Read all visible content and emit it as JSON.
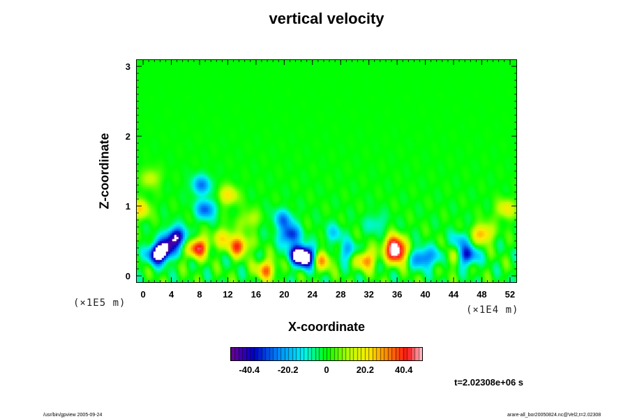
{
  "chart_data": {
    "type": "heatmap",
    "title": "vertical velocity",
    "xlabel": "X-coordinate",
    "ylabel": "Z-coordinate",
    "x_scale_note": "(×1E4 m)",
    "y_scale_note": "(×1E5 m)",
    "xlim": [
      -1,
      53
    ],
    "ylim": [
      -0.1,
      3.1
    ],
    "x_ticks": [
      0,
      4,
      8,
      12,
      16,
      20,
      24,
      28,
      32,
      36,
      40,
      44,
      48,
      52
    ],
    "y_ticks": [
      0,
      1,
      2,
      3
    ],
    "colorbar": {
      "ticks": [
        -40.4,
        -20.2,
        0,
        20.2,
        40.4
      ],
      "tick_labels": [
        "-40.4",
        "-20.2",
        "0",
        "20.2",
        "40.4"
      ],
      "range": [
        -50,
        50
      ]
    },
    "features": [
      {
        "x": 3.0,
        "z": 0.38,
        "value": -38
      },
      {
        "x": 4.6,
        "z": 0.55,
        "value": -48
      },
      {
        "x": 2.0,
        "z": 0.3,
        "value": -50
      },
      {
        "x": 8.8,
        "z": 0.95,
        "value": -30
      },
      {
        "x": 8.2,
        "z": 1.3,
        "value": -26
      },
      {
        "x": 8.0,
        "z": 0.42,
        "value": 30
      },
      {
        "x": 7.2,
        "z": 0.35,
        "value": 18
      },
      {
        "x": 13.5,
        "z": 0.42,
        "value": 38
      },
      {
        "x": 11.5,
        "z": 0.55,
        "value": 20
      },
      {
        "x": 17.4,
        "z": 0.08,
        "value": 32
      },
      {
        "x": 22.0,
        "z": 0.3,
        "value": -48
      },
      {
        "x": 20.8,
        "z": 0.58,
        "value": -36
      },
      {
        "x": 19.8,
        "z": 0.8,
        "value": -24
      },
      {
        "x": 23.2,
        "z": 0.25,
        "value": -52
      },
      {
        "x": 25.3,
        "z": 0.22,
        "value": 30
      },
      {
        "x": 29.0,
        "z": 0.35,
        "value": -20
      },
      {
        "x": 31.6,
        "z": 0.22,
        "value": 32
      },
      {
        "x": 35.6,
        "z": 0.45,
        "value": 40
      },
      {
        "x": 36.0,
        "z": 0.3,
        "value": 44
      },
      {
        "x": 39.6,
        "z": 0.25,
        "value": -32
      },
      {
        "x": 42.2,
        "z": 0.25,
        "value": -18
      },
      {
        "x": 43.5,
        "z": 0.25,
        "value": 22
      },
      {
        "x": 46.0,
        "z": 0.28,
        "value": -36
      },
      {
        "x": 48.2,
        "z": 0.6,
        "value": 30
      },
      {
        "x": -0.5,
        "z": 0.95,
        "value": 22
      },
      {
        "x": 51.5,
        "z": 0.95,
        "value": 20
      },
      {
        "x": 12.0,
        "z": 1.15,
        "value": 22
      },
      {
        "x": 15.0,
        "z": 0.8,
        "value": 14
      },
      {
        "x": 27.0,
        "z": 0.6,
        "value": -14
      },
      {
        "x": 33.0,
        "z": 0.75,
        "value": -12
      },
      {
        "x": 1.0,
        "z": 1.4,
        "value": 14
      },
      {
        "x": 45.0,
        "z": 0.5,
        "value": -16
      }
    ],
    "time_label": "t=2.02308e+06 s"
  },
  "footer": {
    "left": "/usr/bin/gpview 2005-09-24",
    "right": "arare-all_bor20050824.nc@Vel2,t=2.02308"
  }
}
